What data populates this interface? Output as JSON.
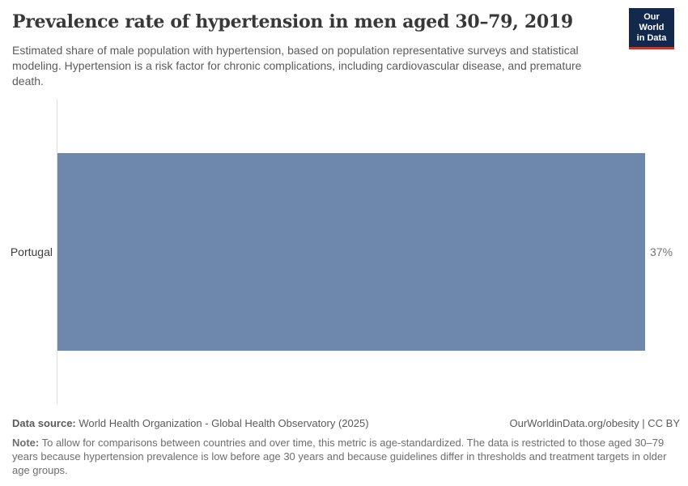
{
  "header": {
    "title": "Prevalence rate of hypertension in men aged 30–79, 2019",
    "subtitle": "Estimated share of male population with hypertension, based on population representative surveys and statistical modeling. Hypertension is a risk factor for chronic complications, including cardiovascular disease, and premature death.",
    "logo": {
      "line1": "Our World",
      "line2": "in Data"
    }
  },
  "chart_data": {
    "type": "bar",
    "orientation": "horizontal",
    "title": "Prevalence rate of hypertension in men aged 30–79, 2019",
    "categories": [
      "Portugal"
    ],
    "values": [
      37
    ],
    "value_labels": [
      "37%"
    ],
    "unit": "%",
    "xlim": [
      0,
      37
    ],
    "grid": false,
    "legend": false,
    "bar_color": "#6e87ac",
    "axis_line_color": "#dedede"
  },
  "footer": {
    "datasource_label": "Data source:",
    "datasource_text": "World Health Organization - Global Health Observatory (2025)",
    "attribution": "OurWorldinData.org/obesity | CC BY",
    "note_label": "Note:",
    "note_text": "To allow for comparisons between countries and over time, this metric is age-standardized. The data is restricted to those aged 30–79 years because hypertension prevalence is low before age 30 years and because guidelines differ in thresholds and treatment targets in older age groups."
  },
  "colors": {
    "bar": "#6e87ac",
    "logo_navy": "#12294d",
    "logo_red": "#c0392f"
  }
}
